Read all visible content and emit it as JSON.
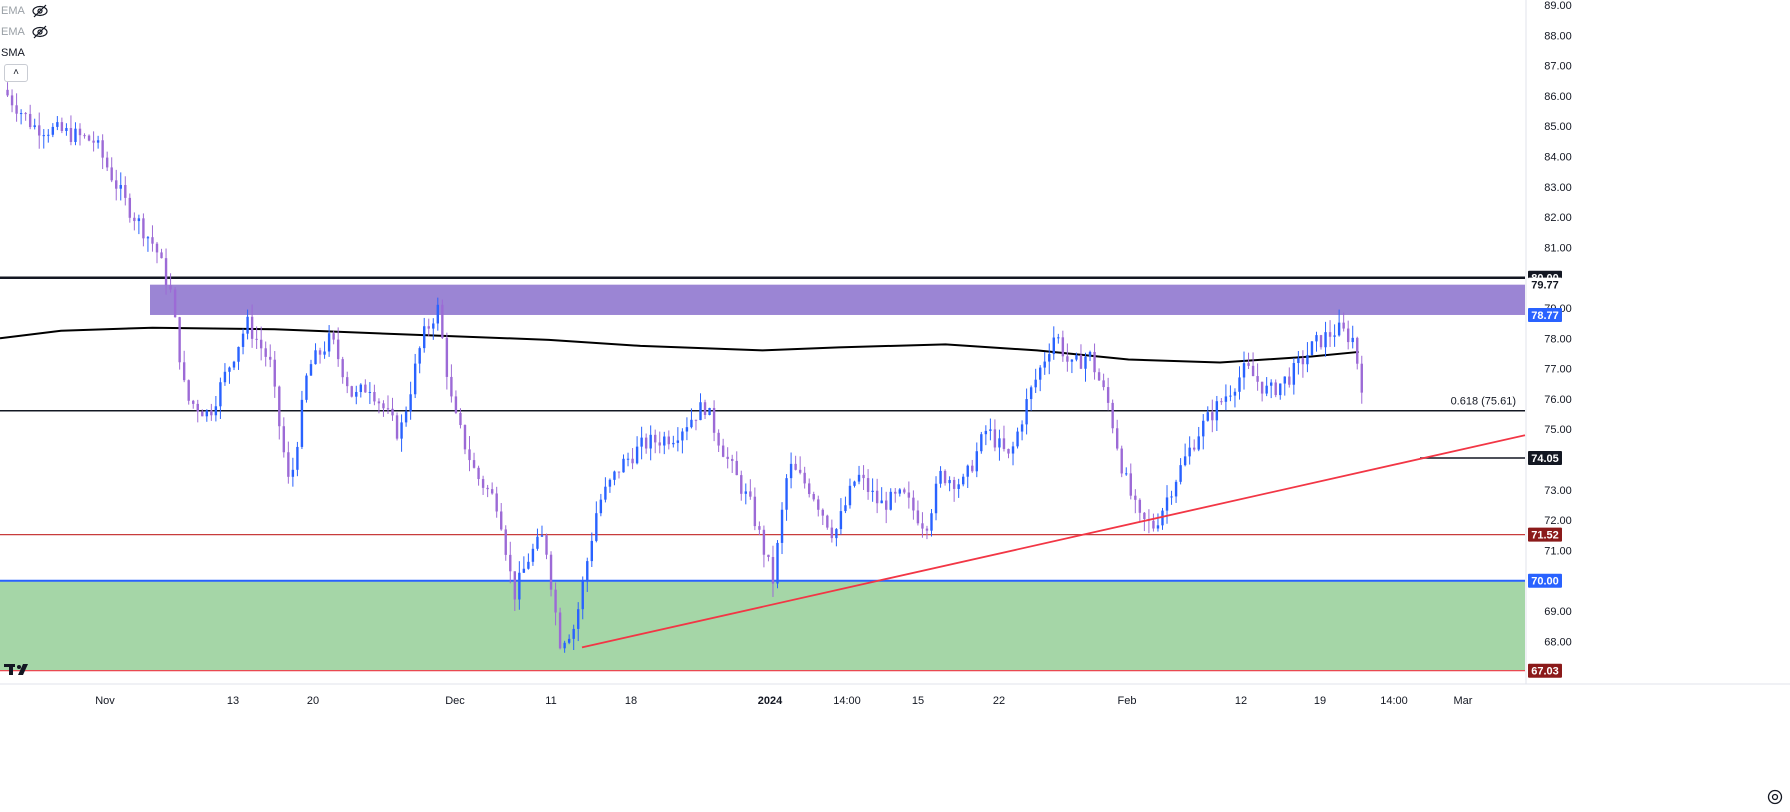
{
  "legend": [
    {
      "label": "EMA",
      "hidden": true
    },
    {
      "label": "EMA",
      "hidden": true
    },
    {
      "label": "SMA",
      "hidden": false
    }
  ],
  "collapse_glyph": "˄",
  "colors": {
    "up": "#2962ff",
    "down": "#9c6ad6",
    "resistance_zone": "#9b85d4",
    "support_zone": "#a5d6a7",
    "trendline": "#f23645",
    "sma": "#000000",
    "blue_line": "#2962ff",
    "red_line": "#f23645"
  },
  "chart_data": {
    "type": "candlestick",
    "y_axis": {
      "min": 67.0,
      "max": 89.0,
      "ticks": [
        "89.00",
        "88.00",
        "87.00",
        "86.00",
        "85.00",
        "84.00",
        "83.00",
        "82.00",
        "81.00",
        "79.00",
        "78.00",
        "77.00",
        "76.00",
        "75.00",
        "73.00",
        "72.00",
        "71.00",
        "69.00",
        "68.00"
      ]
    },
    "x_axis": {
      "ticks": [
        "Nov",
        "13",
        "20",
        "Dec",
        "11",
        "18",
        "2024",
        "14:00",
        "15",
        "22",
        "Feb",
        "12",
        "19",
        "14:00",
        "Mar"
      ]
    },
    "price_labels": [
      {
        "text": "80.00",
        "value": 80.0,
        "style": "black"
      },
      {
        "text": "79.77",
        "value": 79.77,
        "style": "white"
      },
      {
        "text": "78.77",
        "value": 78.77,
        "style": "blue"
      },
      {
        "text": "74.05",
        "value": 74.05,
        "style": "black"
      },
      {
        "text": "71.52",
        "value": 71.52,
        "style": "darkred"
      },
      {
        "text": "70.00",
        "value": 70.0,
        "style": "blue"
      },
      {
        "text": "67.03",
        "value": 67.03,
        "style": "darkred"
      }
    ],
    "horizontal_lines": [
      {
        "value": 80.0,
        "kind": "resistance"
      },
      {
        "value": 75.61,
        "kind": "fibonacci",
        "label": "0.618 (75.61)"
      },
      {
        "value": 71.52,
        "kind": "support"
      },
      {
        "value": 70.0,
        "kind": "support"
      },
      {
        "value": 67.03,
        "kind": "support"
      }
    ],
    "zones": [
      {
        "from": 78.77,
        "to": 79.77,
        "kind": "resistance"
      },
      {
        "from": 67.03,
        "to": 70.0,
        "kind": "support"
      }
    ],
    "trendline": {
      "from": [
        "Dec 13",
        67.8
      ],
      "to": [
        "Mar",
        74.8
      ]
    },
    "sma_path": [
      [
        0,
        78.0
      ],
      [
        0.04,
        78.25
      ],
      [
        0.1,
        78.35
      ],
      [
        0.18,
        78.3
      ],
      [
        0.28,
        78.1
      ],
      [
        0.36,
        77.95
      ],
      [
        0.42,
        77.75
      ],
      [
        0.5,
        77.6
      ],
      [
        0.55,
        77.7
      ],
      [
        0.62,
        77.8
      ],
      [
        0.68,
        77.6
      ],
      [
        0.74,
        77.3
      ],
      [
        0.8,
        77.2
      ],
      [
        0.86,
        77.4
      ],
      [
        0.891,
        77.55
      ]
    ],
    "price_path": [
      [
        0,
        86.2
      ],
      [
        0.02,
        85.0
      ],
      [
        0.04,
        84.8
      ],
      [
        0.06,
        84.5
      ],
      [
        0.08,
        82.5
      ],
      [
        0.1,
        81.0
      ],
      [
        0.11,
        79.5
      ],
      [
        0.12,
        76.0
      ],
      [
        0.135,
        75.5
      ],
      [
        0.15,
        77.3
      ],
      [
        0.16,
        78.5
      ],
      [
        0.175,
        77.2
      ],
      [
        0.18,
        75.5
      ],
      [
        0.188,
        73.0
      ],
      [
        0.2,
        77.0
      ],
      [
        0.215,
        78.0
      ],
      [
        0.23,
        76.0
      ],
      [
        0.24,
        76.5
      ],
      [
        0.26,
        74.8
      ],
      [
        0.275,
        78.0
      ],
      [
        0.285,
        79.0
      ],
      [
        0.295,
        75.6
      ],
      [
        0.31,
        73.5
      ],
      [
        0.325,
        72.5
      ],
      [
        0.335,
        69.5
      ],
      [
        0.345,
        70.8
      ],
      [
        0.355,
        71.5
      ],
      [
        0.365,
        68.0
      ],
      [
        0.375,
        68.5
      ],
      [
        0.39,
        72.5
      ],
      [
        0.405,
        73.8
      ],
      [
        0.42,
        74.5
      ],
      [
        0.44,
        74.8
      ],
      [
        0.46,
        75.8
      ],
      [
        0.475,
        74.0
      ],
      [
        0.49,
        72.5
      ],
      [
        0.505,
        70.0
      ],
      [
        0.515,
        73.8
      ],
      [
        0.53,
        73.0
      ],
      [
        0.545,
        71.5
      ],
      [
        0.56,
        73.5
      ],
      [
        0.575,
        72.5
      ],
      [
        0.59,
        72.8
      ],
      [
        0.605,
        71.8
      ],
      [
        0.615,
        73.5
      ],
      [
        0.63,
        73.2
      ],
      [
        0.645,
        75.0
      ],
      [
        0.66,
        74.0
      ],
      [
        0.672,
        76.0
      ],
      [
        0.69,
        78.2
      ],
      [
        0.7,
        77.0
      ],
      [
        0.712,
        77.5
      ],
      [
        0.725,
        75.8
      ],
      [
        0.735,
        73.5
      ],
      [
        0.745,
        72.0
      ],
      [
        0.755,
        71.8
      ],
      [
        0.77,
        73.5
      ],
      [
        0.785,
        75.0
      ],
      [
        0.8,
        76.0
      ],
      [
        0.815,
        77.0
      ],
      [
        0.83,
        76.2
      ],
      [
        0.845,
        76.8
      ],
      [
        0.86,
        77.8
      ],
      [
        0.875,
        78.3
      ],
      [
        0.885,
        78.0
      ],
      [
        0.891,
        76.5
      ]
    ]
  }
}
